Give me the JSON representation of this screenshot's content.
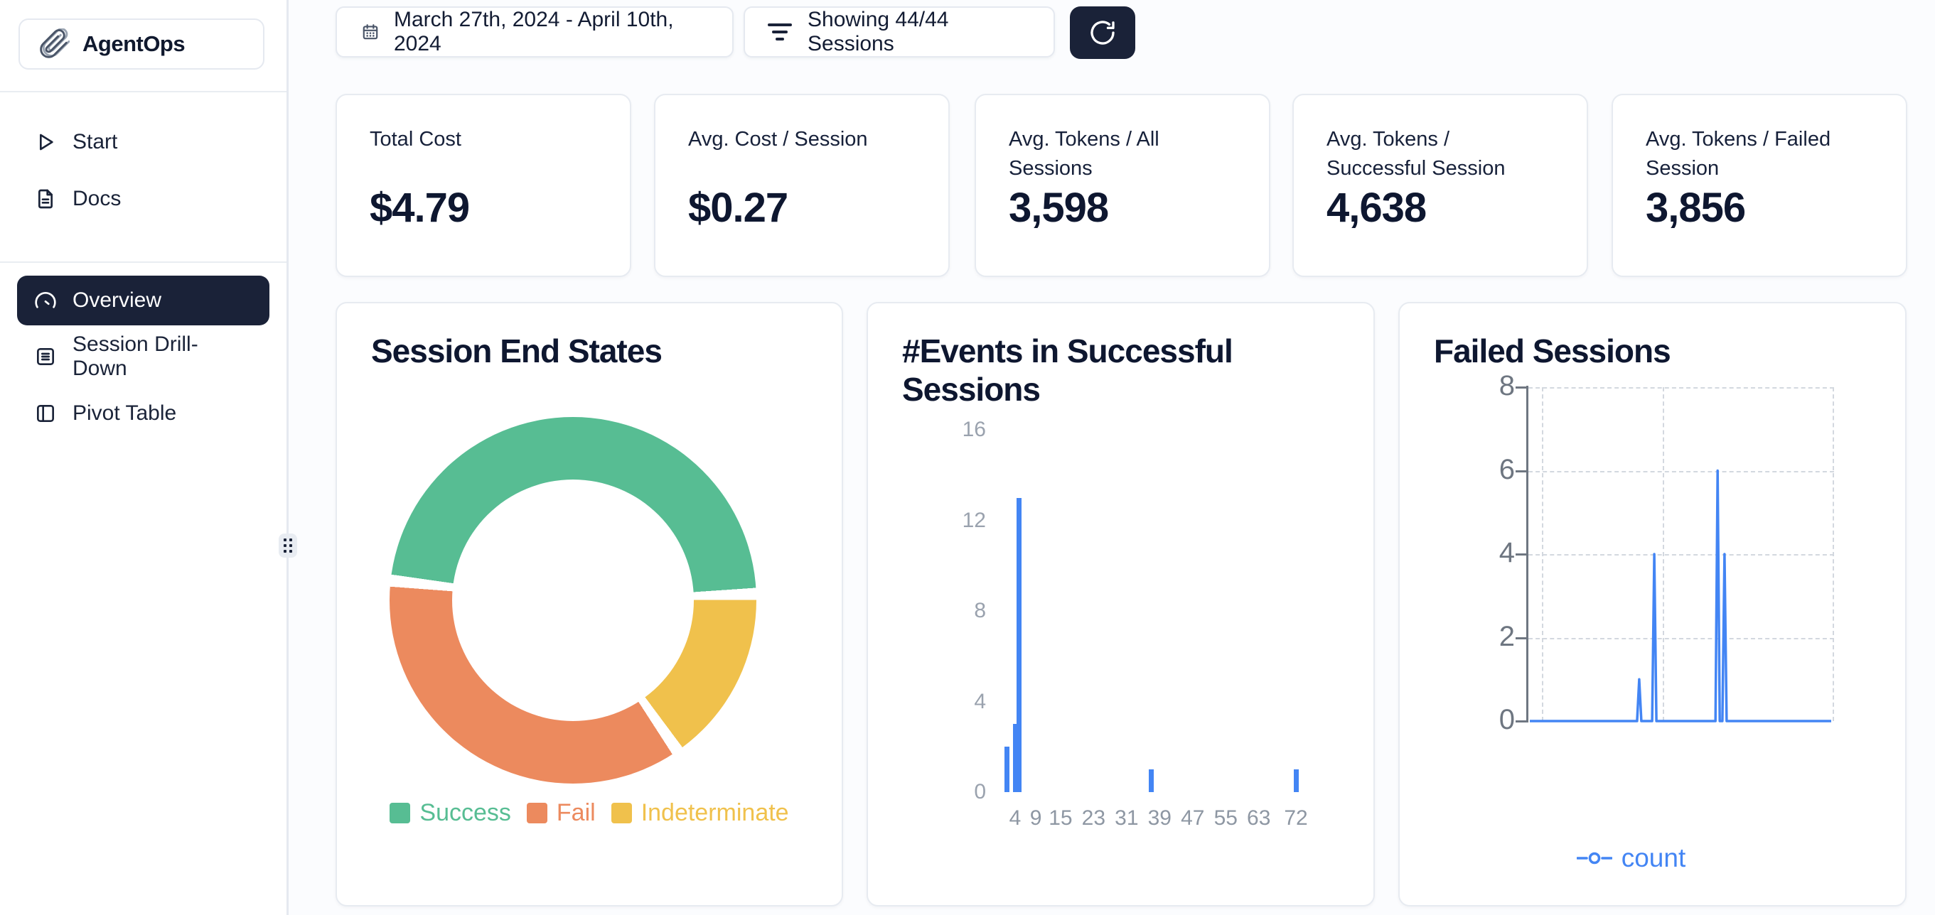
{
  "brand": {
    "name": "AgentOps"
  },
  "sidebar": {
    "items": [
      {
        "label": "Start",
        "icon": "play-icon",
        "active": false
      },
      {
        "label": "Docs",
        "icon": "file-text-icon",
        "active": false
      },
      {
        "label": "Overview",
        "icon": "gauge-icon",
        "active": true
      },
      {
        "label": "Session Drill-Down",
        "icon": "list-box-icon",
        "active": false
      },
      {
        "label": "Pivot Table",
        "icon": "layout-columns-icon",
        "active": false
      }
    ]
  },
  "topbar": {
    "date_range": "March 27th, 2024 - April 10th, 2024",
    "sessions_filter": "Showing 44/44 Sessions",
    "refresh_icon": "refresh-icon",
    "calendar_icon": "calendar-icon",
    "filter_icon": "filter-lines-icon"
  },
  "stat_cards": [
    {
      "label": "Total Cost",
      "value": "$4.79"
    },
    {
      "label": "Avg. Cost / Session",
      "value": "$0.27"
    },
    {
      "label": "Avg. Tokens / All Sessions",
      "value": "3,598"
    },
    {
      "label": "Avg. Tokens / Successful Session",
      "value": "4,638"
    },
    {
      "label": "Avg. Tokens / Failed Session",
      "value": "3,856"
    }
  ],
  "colors": {
    "navy": "#1A2238",
    "heading": "#0E1730",
    "border": "#E5E9F0",
    "blue": "#4385F4",
    "success_green": "#57BD93",
    "fail_orange": "#EC8A5E",
    "indeterminate_yellow": "#F0C14C",
    "axis_gray": "#6E7681",
    "tick_gray": "#9AA2AE"
  },
  "chart_data": [
    {
      "type": "pie",
      "donut": true,
      "title": "Session End States",
      "labels": [
        "Success",
        "Fail",
        "Indeterminate"
      ],
      "values": [
        21,
        16,
        7
      ],
      "total_sessions": 44,
      "colors": [
        "#57BD93",
        "#EC8A5E",
        "#F0C14C"
      ],
      "legend_position": "bottom"
    },
    {
      "type": "bar",
      "title": "#Events in Successful Sessions",
      "x": [
        2,
        4,
        5,
        37,
        72
      ],
      "values": [
        2,
        3,
        13,
        1,
        1
      ],
      "x_ticks": [
        4,
        9,
        15,
        23,
        31,
        39,
        47,
        55,
        63,
        72
      ],
      "y_ticks": [
        0,
        4,
        8,
        12,
        16
      ],
      "ylim": [
        0,
        16
      ],
      "bar_color": "#4385F4",
      "grid": false
    },
    {
      "type": "line",
      "title": "Failed Sessions",
      "series": [
        {
          "name": "count",
          "color": "#4385F4",
          "baseline": 0,
          "spikes": [
            {
              "pos": 0.363,
              "value": 1
            },
            {
              "pos": 0.413,
              "value": 4
            },
            {
              "pos": 0.623,
              "value": 6
            },
            {
              "pos": 0.646,
              "value": 4
            }
          ]
        }
      ],
      "y_ticks": [
        0,
        2,
        4,
        6,
        8
      ],
      "ylim": [
        0,
        8
      ],
      "x_tick_labels": [],
      "grid": "dashed",
      "legend_position": "bottom"
    }
  ]
}
